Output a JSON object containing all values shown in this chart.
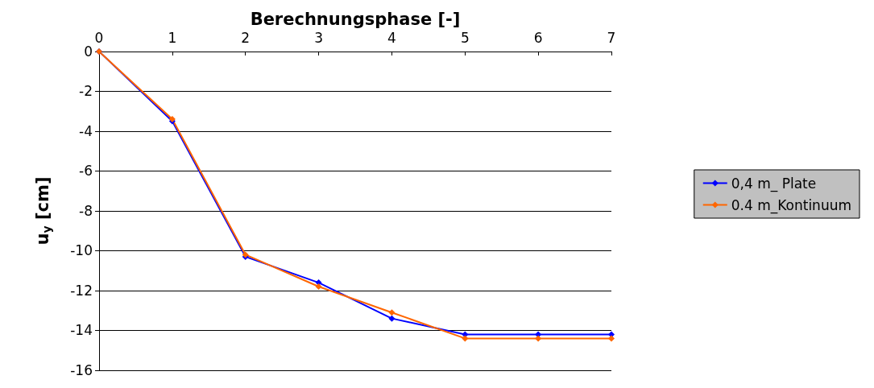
{
  "chart_data": {
    "type": "line",
    "xlabel": "Berechnungsphase [-]",
    "ylabel": "u$_{y}$ [cm]",
    "x": [
      0,
      1,
      2,
      3,
      4,
      5,
      6,
      7
    ],
    "series": [
      {
        "name": "0,4 m_ Plate",
        "color": "#0000ff",
        "values": [
          0,
          -3.5,
          -10.3,
          -11.6,
          -13.4,
          -14.2,
          -14.2,
          -14.2
        ]
      },
      {
        "name": "0.4 m_Kontinuum",
        "color": "#ff6600",
        "values": [
          0,
          -3.4,
          -10.2,
          -11.8,
          -13.1,
          -14.4,
          -14.4,
          -14.4
        ]
      }
    ],
    "xlim": [
      0,
      7
    ],
    "xticks": [
      0,
      1,
      2,
      3,
      4,
      5,
      6,
      7
    ],
    "ylim": [
      -16,
      0
    ],
    "yticks": [
      -16,
      -14,
      -12,
      -10,
      -8,
      -6,
      -4,
      -2,
      0
    ],
    "grid": "y",
    "legend": "right",
    "marker": "diamond",
    "line_style": "solid"
  }
}
